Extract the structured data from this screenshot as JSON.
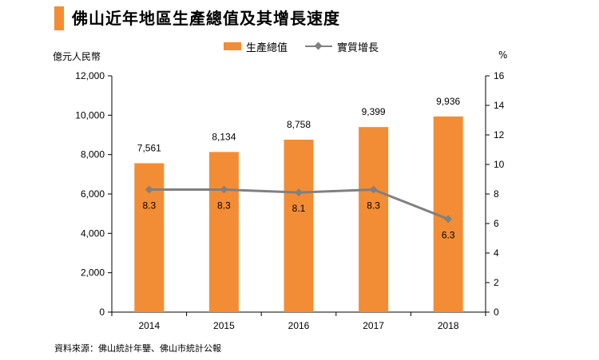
{
  "page": {
    "title": "佛山近年地區生產總值及其增長速度",
    "source": "資料來源：佛山統計年鑒、佛山市統計公報"
  },
  "colors": {
    "bar": "#f28d35",
    "line": "#808080",
    "title_accent": "#f28d35"
  },
  "chart_data": {
    "type": "bar",
    "categories": [
      "2014",
      "2015",
      "2016",
      "2017",
      "2018"
    ],
    "series": [
      {
        "name": "生產總值",
        "type": "bar",
        "axis": "left",
        "values": [
          7561,
          8134,
          8758,
          9399,
          9936
        ],
        "labels": [
          "7,561",
          "8,134",
          "8,758",
          "9,399",
          "9,936"
        ]
      },
      {
        "name": "實質增長",
        "type": "line",
        "axis": "right",
        "values": [
          8.3,
          8.3,
          8.1,
          8.3,
          6.3
        ],
        "labels": [
          "8.3",
          "8.3",
          "8.1",
          "8.3",
          "6.3"
        ]
      }
    ],
    "y_left": {
      "label": "億元人民幣",
      "min": 0,
      "max": 12000,
      "ticks": [
        "0",
        "2,000",
        "4,000",
        "6,000",
        "8,000",
        "10,000",
        "12,000"
      ]
    },
    "y_right": {
      "label": "%",
      "min": 0,
      "max": 16,
      "ticks": [
        "0",
        "2",
        "4",
        "6",
        "8",
        "10",
        "12",
        "14",
        "16"
      ]
    },
    "legend_position": "top-center",
    "grid": false
  }
}
